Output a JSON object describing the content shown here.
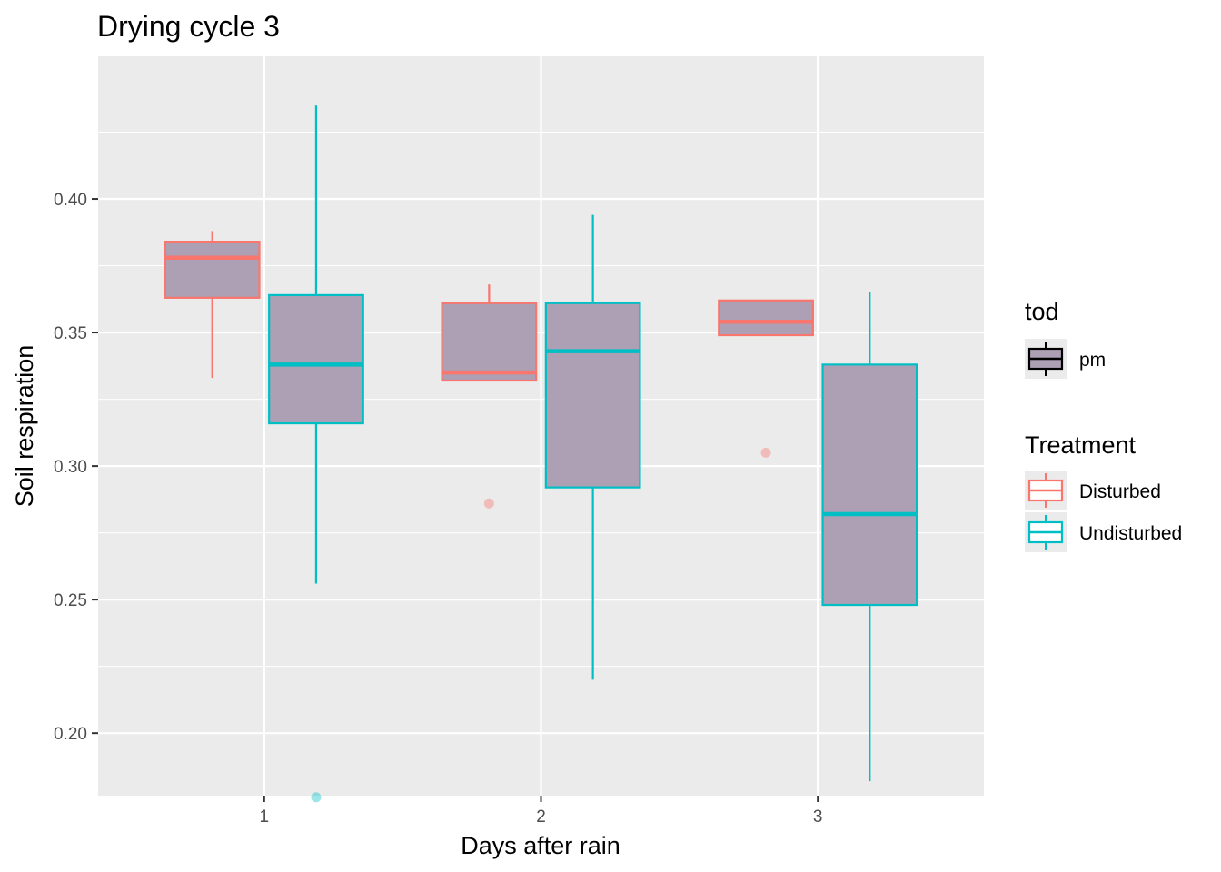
{
  "chart_data": {
    "type": "box",
    "title": "Drying cycle 3",
    "xlabel": "Days after rain",
    "ylabel": "Soil respiration",
    "categories": [
      "1",
      "2",
      "3"
    ],
    "ylim": [
      0.1766,
      0.4534
    ],
    "yticks": [
      0.2,
      0.25,
      0.3,
      0.35,
      0.4
    ],
    "ytick_labels": [
      "0.20",
      "0.25",
      "0.30",
      "0.35",
      "0.40"
    ],
    "grid": true,
    "legend_position": "right",
    "fill_color": "#ad9fb4",
    "series": [
      {
        "name": "Disturbed",
        "color": "#f8766d",
        "boxes": [
          {
            "x": "1",
            "min": 0.333,
            "q1": 0.363,
            "median": 0.378,
            "q3": 0.384,
            "max": 0.388,
            "outliers": []
          },
          {
            "x": "2",
            "min": 0.332,
            "q1": 0.332,
            "median": 0.335,
            "q3": 0.361,
            "max": 0.368,
            "outliers": [
              0.286
            ]
          },
          {
            "x": "3",
            "min": 0.349,
            "q1": 0.349,
            "median": 0.354,
            "q3": 0.362,
            "max": 0.362,
            "outliers": [
              0.305
            ]
          }
        ]
      },
      {
        "name": "Undisturbed",
        "color": "#00bfc4",
        "boxes": [
          {
            "x": "1",
            "min": 0.256,
            "q1": 0.316,
            "median": 0.338,
            "q3": 0.364,
            "max": 0.435,
            "outliers": [
              0.176
            ]
          },
          {
            "x": "2",
            "min": 0.22,
            "q1": 0.292,
            "median": 0.343,
            "q3": 0.361,
            "max": 0.394,
            "outliers": []
          },
          {
            "x": "3",
            "min": 0.182,
            "q1": 0.248,
            "median": 0.282,
            "q3": 0.338,
            "max": 0.365,
            "outliers": []
          }
        ]
      }
    ],
    "legends": [
      {
        "title": "tod",
        "items": [
          {
            "label": "pm",
            "color": "#000000",
            "fill": "#ad9fb4"
          }
        ]
      },
      {
        "title": "Treatment",
        "items": [
          {
            "label": "Disturbed",
            "color": "#f8766d"
          },
          {
            "label": "Undisturbed",
            "color": "#00bfc4"
          }
        ]
      }
    ]
  }
}
